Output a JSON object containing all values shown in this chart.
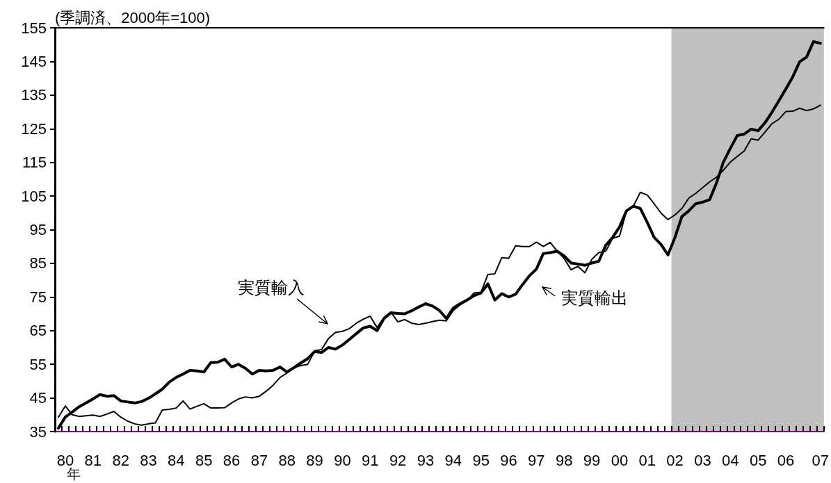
{
  "chart_data": {
    "type": "line",
    "ylabel": "(季調済、2000年=100)",
    "xlabel": "年",
    "categories": [
      null,
      "80",
      null,
      null,
      null,
      "81",
      null,
      null,
      null,
      "82",
      null,
      null,
      null,
      "83",
      null,
      null,
      null,
      "84",
      null,
      null,
      null,
      "85",
      null,
      null,
      null,
      "86",
      null,
      null,
      null,
      "87",
      null,
      null,
      null,
      "88",
      null,
      null,
      null,
      "89",
      null,
      null,
      null,
      "90",
      null,
      null,
      null,
      "91",
      null,
      null,
      null,
      "92",
      null,
      null,
      null,
      "93",
      null,
      null,
      null,
      "94",
      null,
      null,
      null,
      "95",
      null,
      null,
      null,
      "96",
      null,
      null,
      null,
      "97",
      null,
      null,
      null,
      "98",
      null,
      null,
      null,
      "99",
      null,
      null,
      null,
      "00",
      null,
      null,
      null,
      "01",
      null,
      null,
      null,
      "02",
      null,
      null,
      null,
      "03",
      null,
      null,
      null,
      "04",
      null,
      null,
      null,
      "05",
      null,
      null,
      null,
      "06",
      null,
      null,
      null,
      null,
      "07"
    ],
    "series": [
      {
        "name": "実質輸出",
        "color": "#000000",
        "values": [
          36,
          39.3,
          40.8,
          42.4,
          43.5,
          44.7,
          46,
          45.5,
          45.7,
          44.1,
          43.8,
          43.5,
          43.9,
          44.9,
          46.2,
          47.6,
          49.7,
          51.1,
          52.1,
          53.2,
          53,
          52.7,
          55.5,
          55.6,
          56.5,
          54.2,
          55,
          53.8,
          52.1,
          53.2,
          53,
          53.2,
          54.2,
          52.7,
          54,
          55.4,
          56.7,
          58.8,
          58.5,
          60,
          59.5,
          60.7,
          62.4,
          64.1,
          65.8,
          66.3,
          65,
          68.6,
          70.3,
          70.1,
          70,
          70.9,
          72,
          73,
          72.3,
          71,
          68.6,
          71.7,
          73,
          74.1,
          75.4,
          76.2,
          78.9,
          74.1,
          76,
          75,
          75.8,
          78.7,
          81.3,
          83.3,
          87.9,
          88.2,
          88.6,
          87.2,
          85.1,
          84.8,
          84.4,
          85.1,
          85.6,
          90.3,
          92.7,
          95.8,
          100.6,
          102,
          101.3,
          97.2,
          92.7,
          90.6,
          87.5,
          92.7,
          98.9,
          100.6,
          102.7,
          103.2,
          103.9,
          108.9,
          115.1,
          119.2,
          123,
          123.4,
          124.9,
          124.4,
          126.8,
          129.9,
          133.3,
          136.8,
          140.4,
          144.9,
          146.3,
          150.9,
          150.4
        ]
      },
      {
        "name": "実質輸入",
        "color": "#000000",
        "values": [
          39.3,
          42.6,
          40,
          39.5,
          39.7,
          39.9,
          39.5,
          40.2,
          41,
          39.3,
          38.1,
          37.3,
          36.9,
          37.3,
          37.6,
          41.4,
          41.6,
          42,
          44.1,
          41.7,
          42.5,
          43.3,
          42,
          42,
          42.1,
          43.5,
          44.7,
          45.3,
          45,
          45.5,
          47,
          48.8,
          51.1,
          52.4,
          54,
          54.6,
          55,
          59,
          59.4,
          62.7,
          64.5,
          64.8,
          65.6,
          67.2,
          68.4,
          69.3,
          65.9,
          68.9,
          70.5,
          67.6,
          68.3,
          67.2,
          66.8,
          67.2,
          67.7,
          68.1,
          67.9,
          71,
          72.7,
          73.9,
          76.2,
          76.4,
          81.7,
          81.9,
          86.7,
          86.5,
          90.2,
          90,
          90,
          91.3,
          90,
          91.2,
          88.6,
          86.5,
          83.1,
          84.1,
          82.2,
          86.2,
          88.2,
          88.6,
          92.4,
          93.1,
          100.6,
          102,
          106.1,
          105.3,
          102.7,
          99.9,
          98,
          99.4,
          101.3,
          104.4,
          105.8,
          107.5,
          109.2,
          110.6,
          112.7,
          115.1,
          116.8,
          118.4,
          122,
          121.6,
          124,
          126.5,
          127.8,
          130.1,
          130.2,
          131.1,
          130.4,
          130.9,
          132
        ]
      }
    ],
    "ylim": [
      35,
      155
    ],
    "yticks": [
      35,
      45,
      55,
      65,
      75,
      85,
      95,
      105,
      115,
      125,
      135,
      145,
      155
    ],
    "bands": [
      {
        "axis": "x",
        "from": "02",
        "to": "07",
        "color": "#c0c0c0"
      }
    ],
    "grid": false,
    "marker": "none",
    "line_style": "solid"
  }
}
